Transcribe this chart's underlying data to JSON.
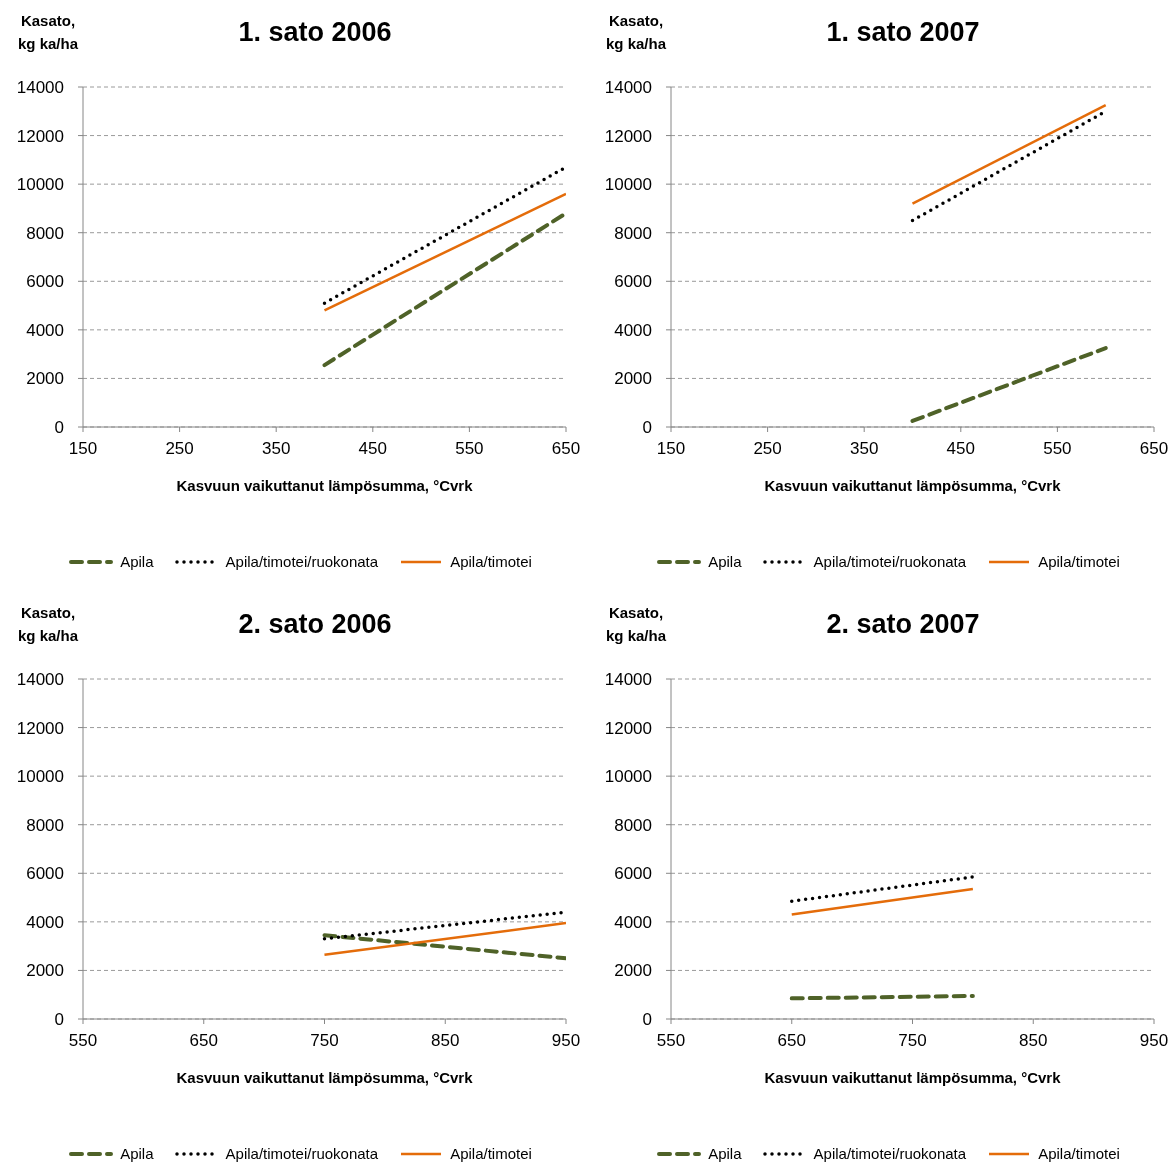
{
  "chart_data": [
    {
      "type": "line",
      "title": "1. sato 2006",
      "ylabel": "Kasato, kg ka/ha",
      "xlabel": "Kasvuun vaikuttanut lämpösumma, °Cvrk",
      "xlim": [
        150,
        650
      ],
      "xticks": [
        150,
        250,
        350,
        450,
        550,
        650
      ],
      "ylim": [
        0,
        14000
      ],
      "yticks": [
        0,
        2000,
        4000,
        6000,
        8000,
        10000,
        12000,
        14000
      ],
      "grid": "y",
      "legend": "bottom",
      "series": [
        {
          "name": "Apila",
          "color": "#4f6228",
          "line_style": "dashed",
          "x": [
            400,
            650
          ],
          "values": [
            2550,
            8800
          ]
        },
        {
          "name": "Apila/timotei/ruokonata",
          "color": "#000000",
          "line_style": "dotted",
          "x": [
            400,
            650
          ],
          "values": [
            5100,
            10700
          ]
        },
        {
          "name": "Apila/timotei",
          "color": "#e46c0a",
          "line_style": "solid",
          "x": [
            400,
            650
          ],
          "values": [
            4800,
            9600
          ]
        }
      ]
    },
    {
      "type": "line",
      "title": "1. sato 2007",
      "ylabel": "Kasato, kg ka/ha",
      "xlabel": "Kasvuun vaikuttanut lämpösumma, °Cvrk",
      "xlim": [
        150,
        650
      ],
      "xticks": [
        150,
        250,
        350,
        450,
        550,
        650
      ],
      "ylim": [
        0,
        14000
      ],
      "yticks": [
        0,
        2000,
        4000,
        6000,
        8000,
        10000,
        12000,
        14000
      ],
      "grid": "y",
      "legend": "bottom",
      "series": [
        {
          "name": "Apila",
          "color": "#4f6228",
          "line_style": "dashed",
          "x": [
            400,
            600
          ],
          "values": [
            250,
            3250
          ]
        },
        {
          "name": "Apila/timotei/ruokonata",
          "color": "#000000",
          "line_style": "dotted",
          "x": [
            400,
            600
          ],
          "values": [
            8500,
            13000
          ]
        },
        {
          "name": "Apila/timotei",
          "color": "#e46c0a",
          "line_style": "solid",
          "x": [
            400,
            600
          ],
          "values": [
            9200,
            13250
          ]
        }
      ]
    },
    {
      "type": "line",
      "title": "2. sato 2006",
      "ylabel": "Kasato, kg ka/ha",
      "xlabel": "Kasvuun vaikuttanut lämpösumma, °Cvrk",
      "xlim": [
        550,
        950
      ],
      "xticks": [
        550,
        650,
        750,
        850,
        950
      ],
      "ylim": [
        0,
        14000
      ],
      "yticks": [
        0,
        2000,
        4000,
        6000,
        8000,
        10000,
        12000,
        14000
      ],
      "grid": "y",
      "legend": "bottom",
      "series": [
        {
          "name": "Apila",
          "color": "#4f6228",
          "line_style": "dashed",
          "x": [
            750,
            950
          ],
          "values": [
            3450,
            2500
          ]
        },
        {
          "name": "Apila/timotei/ruokonata",
          "color": "#000000",
          "line_style": "dotted",
          "x": [
            750,
            950
          ],
          "values": [
            3300,
            4400
          ]
        },
        {
          "name": "Apila/timotei",
          "color": "#e46c0a",
          "line_style": "solid",
          "x": [
            750,
            950
          ],
          "values": [
            2650,
            3950
          ]
        }
      ]
    },
    {
      "type": "line",
      "title": "2. sato 2007",
      "ylabel": "Kasato, kg ka/ha",
      "xlabel": "Kasvuun vaikuttanut lämpösumma, °Cvrk",
      "xlim": [
        550,
        950
      ],
      "xticks": [
        550,
        650,
        750,
        850,
        950
      ],
      "ylim": [
        0,
        14000
      ],
      "yticks": [
        0,
        2000,
        4000,
        6000,
        8000,
        10000,
        12000,
        14000
      ],
      "grid": "y",
      "legend": "bottom",
      "series": [
        {
          "name": "Apila",
          "color": "#4f6228",
          "line_style": "dashed",
          "x": [
            650,
            800
          ],
          "values": [
            850,
            950
          ]
        },
        {
          "name": "Apila/timotei/ruokonata",
          "color": "#000000",
          "line_style": "dotted",
          "x": [
            650,
            800
          ],
          "values": [
            4850,
            5850
          ]
        },
        {
          "name": "Apila/timotei",
          "color": "#e46c0a",
          "line_style": "solid",
          "x": [
            650,
            800
          ],
          "values": [
            4300,
            5350
          ]
        }
      ]
    }
  ]
}
